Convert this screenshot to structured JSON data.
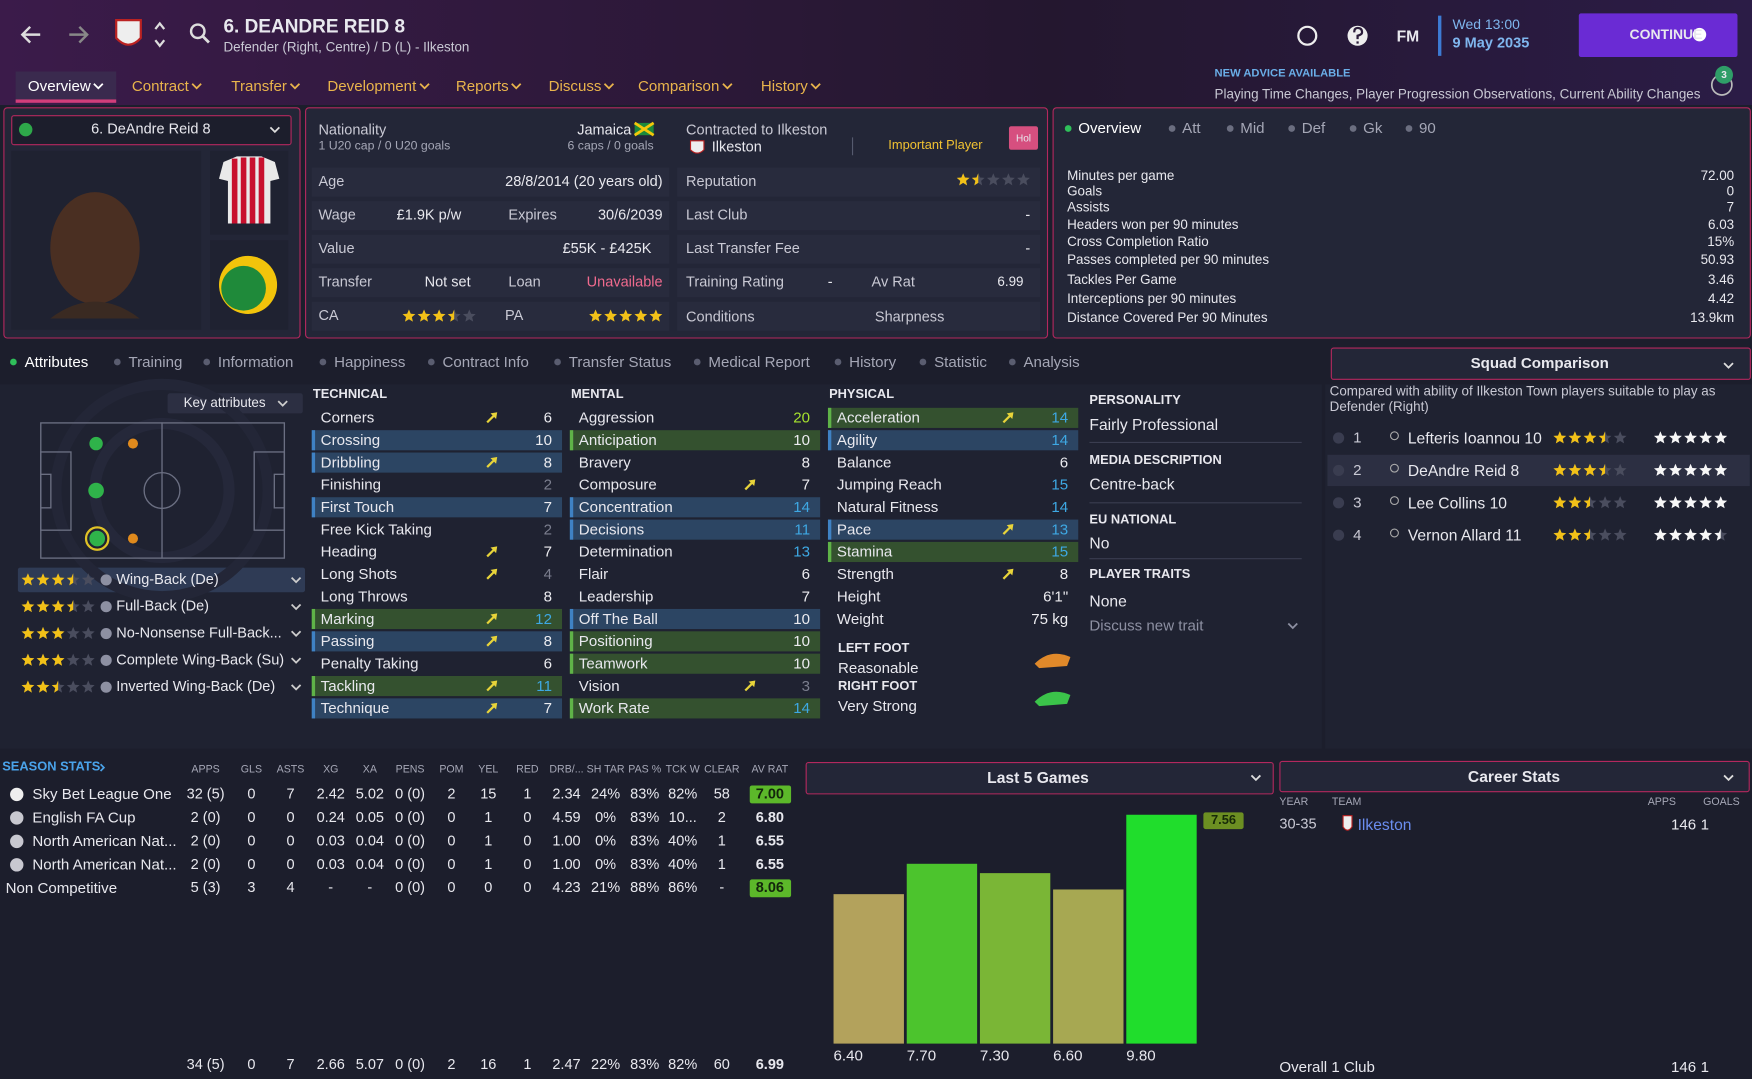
{
  "header": {
    "title": "6. DEANDRE REID 8",
    "subtitle": "Defender (Right, Centre) / D (L) - Ilkeston",
    "logo": "FM",
    "day_time": "Wed 13:00",
    "date": "9 May 2035",
    "continue": "CONTINUE",
    "advice_title": "NEW ADVICE AVAILABLE",
    "advice_text": "Playing Time Changes, Player Progression Observations, Current Ability Changes",
    "notifications": "3"
  },
  "nav": {
    "items": [
      "Overview",
      "Contract",
      "Transfer",
      "Development",
      "Reports",
      "Discuss",
      "Comparison",
      "History"
    ]
  },
  "player_select": "6. DeAndre Reid 8",
  "profile": {
    "nationality": {
      "label": "Nationality",
      "value": "Jamaica",
      "youth": "1 U20 cap / 0 U20 goals",
      "caps": "6 caps / 0 goals"
    },
    "contract": {
      "label": "Contracted to Ilkeston",
      "club": "Ilkeston",
      "status": "Important Player",
      "badge": "Hol"
    },
    "age": {
      "label": "Age",
      "value": "28/8/2014 (20 years old)"
    },
    "wage": {
      "label": "Wage",
      "value": "£1.9K p/w"
    },
    "expires": {
      "label": "Expires",
      "value": "30/6/2039"
    },
    "value": {
      "label": "Value",
      "value": "£55K - £425K"
    },
    "transfer": {
      "label": "Transfer",
      "value": "Not set"
    },
    "loan": {
      "label": "Loan",
      "value": "Unavailable"
    },
    "ca": {
      "label": "CA",
      "stars": 3.5
    },
    "pa": {
      "label": "PA",
      "stars": 5
    },
    "reputation": {
      "label": "Reputation",
      "stars": 1.5
    },
    "last_club": {
      "label": "Last Club",
      "value": "-"
    },
    "last_fee": {
      "label": "Last Transfer Fee",
      "value": "-"
    },
    "training": {
      "label": "Training Rating",
      "value": "-"
    },
    "av_rat": {
      "label": "Av Rat",
      "value": "6.99"
    },
    "conditions": {
      "label": "Conditions"
    },
    "sharpness": {
      "label": "Sharpness"
    }
  },
  "overview": {
    "tabs": [
      "Overview",
      "Att",
      "Mid",
      "Def",
      "Gk",
      "90"
    ],
    "stats": [
      {
        "label": "Minutes per game",
        "value": "72.00"
      },
      {
        "label": "Goals",
        "value": "0"
      },
      {
        "label": "Assists",
        "value": "7"
      },
      {
        "label": "Headers won per 90 minutes",
        "value": "6.03"
      },
      {
        "label": "Cross Completion Ratio",
        "value": "15%"
      },
      {
        "label": "Passes completed per 90 minutes",
        "value": "50.93"
      },
      {
        "label": "Tackles Per Game",
        "value": "3.46"
      },
      {
        "label": "Interceptions per 90 minutes",
        "value": "4.42"
      },
      {
        "label": "Distance Covered Per 90 Minutes",
        "value": "13.9km"
      }
    ]
  },
  "subtabs": [
    "Attributes",
    "Training",
    "Information",
    "Happiness",
    "Contract Info",
    "Transfer Status",
    "Medical Report",
    "History",
    "Statistic",
    "Analysis"
  ],
  "key_attributes": "Key attributes",
  "roles": [
    {
      "name": "Wing-Back (De)",
      "stars": 3.5
    },
    {
      "name": "Full-Back (De)",
      "stars": 3.5
    },
    {
      "name": "No-Nonsense Full-Back...",
      "stars": 3
    },
    {
      "name": "Complete Wing-Back (Su)",
      "stars": 3
    },
    {
      "name": "Inverted Wing-Back (De)",
      "stars": 2.5
    }
  ],
  "attributes": {
    "technical": {
      "title": "TECHNICAL",
      "items": [
        {
          "name": "Corners",
          "value": 6,
          "trend": "up"
        },
        {
          "name": "Crossing",
          "value": 10,
          "highlight": "blue"
        },
        {
          "name": "Dribbling",
          "value": 8,
          "highlight": "blue",
          "trend": "up"
        },
        {
          "name": "Finishing",
          "value": 2
        },
        {
          "name": "First Touch",
          "value": 7,
          "highlight": "blue"
        },
        {
          "name": "Free Kick Taking",
          "value": 2
        },
        {
          "name": "Heading",
          "value": 7,
          "trend": "up"
        },
        {
          "name": "Long Shots",
          "value": 4,
          "trend": "up"
        },
        {
          "name": "Long Throws",
          "value": 8
        },
        {
          "name": "Marking",
          "value": 12,
          "highlight": "green",
          "trend": "up"
        },
        {
          "name": "Passing",
          "value": 8,
          "highlight": "blue",
          "trend": "up"
        },
        {
          "name": "Penalty Taking",
          "value": 6
        },
        {
          "name": "Tackling",
          "value": 11,
          "highlight": "green",
          "trend": "up"
        },
        {
          "name": "Technique",
          "value": 7,
          "highlight": "blue",
          "trend": "up"
        }
      ]
    },
    "mental": {
      "title": "MENTAL",
      "items": [
        {
          "name": "Aggression",
          "value": 20
        },
        {
          "name": "Anticipation",
          "value": 10,
          "highlight": "green"
        },
        {
          "name": "Bravery",
          "value": 8
        },
        {
          "name": "Composure",
          "value": 7,
          "trend": "up"
        },
        {
          "name": "Concentration",
          "value": 14,
          "highlight": "blue"
        },
        {
          "name": "Decisions",
          "value": 11,
          "highlight": "blue"
        },
        {
          "name": "Determination",
          "value": 13
        },
        {
          "name": "Flair",
          "value": 6
        },
        {
          "name": "Leadership",
          "value": 7
        },
        {
          "name": "Off The Ball",
          "value": 10,
          "highlight": "blue"
        },
        {
          "name": "Positioning",
          "value": 10,
          "highlight": "green"
        },
        {
          "name": "Teamwork",
          "value": 10,
          "highlight": "green"
        },
        {
          "name": "Vision",
          "value": 3,
          "trend": "up"
        },
        {
          "name": "Work Rate",
          "value": 14,
          "highlight": "green"
        }
      ]
    },
    "physical": {
      "title": "PHYSICAL",
      "items": [
        {
          "name": "Acceleration",
          "value": 14,
          "highlight": "green",
          "trend": "up"
        },
        {
          "name": "Agility",
          "value": 14,
          "highlight": "blue"
        },
        {
          "name": "Balance",
          "value": 6
        },
        {
          "name": "Jumping Reach",
          "value": 15
        },
        {
          "name": "Natural Fitness",
          "value": 14
        },
        {
          "name": "Pace",
          "value": 13,
          "highlight": "blue",
          "trend": "up"
        },
        {
          "name": "Stamina",
          "value": 15,
          "highlight": "green"
        },
        {
          "name": "Strength",
          "value": 8,
          "trend": "up"
        },
        {
          "name": "Height",
          "value": "6'1\""
        },
        {
          "name": "Weight",
          "value": "75 kg"
        }
      ]
    }
  },
  "feet": {
    "left_label": "LEFT FOOT",
    "left": "Reasonable",
    "right_label": "RIGHT FOOT",
    "right": "Very Strong"
  },
  "profile_info": [
    {
      "label": "PERSONALITY",
      "value": "Fairly Professional"
    },
    {
      "label": "MEDIA DESCRIPTION",
      "value": "Centre-back"
    },
    {
      "label": "EU NATIONAL",
      "value": "No"
    },
    {
      "label": "PLAYER TRAITS",
      "value": "None"
    }
  ],
  "discuss_trait": "Discuss new trait",
  "squad_comparison": {
    "title": "Squad Comparison",
    "note": "Compared with ability of Ilkeston Town players suitable to play as Defender (Right)",
    "players": [
      {
        "rank": 1,
        "name": "Lefteris Ioannou 10",
        "ca": 3.5,
        "pa": 5
      },
      {
        "rank": 2,
        "name": "DeAndre Reid 8",
        "ca": 3.5,
        "pa": 5
      },
      {
        "rank": 3,
        "name": "Lee Collins 10",
        "ca": 2.5,
        "pa": 5
      },
      {
        "rank": 4,
        "name": "Vernon Allard 11",
        "ca": 2.5,
        "pa": 4.5
      }
    ]
  },
  "season_stats": {
    "title": "SEASON STATS",
    "columns": [
      "APPS",
      "GLS",
      "ASTS",
      "XG",
      "XA",
      "PENS",
      "POM",
      "YEL",
      "RED",
      "DRB/...",
      "SH TAR",
      "PAS %",
      "TCK W",
      "CLEAR",
      "AV RAT"
    ],
    "rows": [
      {
        "competition": "Sky Bet League One",
        "values": [
          "32 (5)",
          "0",
          "7",
          "2.42",
          "5.02",
          "0 (0)",
          "2",
          "15",
          "1",
          "2.34",
          "24%",
          "83%",
          "82%",
          "58",
          "7.00"
        ],
        "highlight": true
      },
      {
        "competition": "English FA Cup",
        "values": [
          "2 (0)",
          "0",
          "0",
          "0.24",
          "0.05",
          "0 (0)",
          "0",
          "1",
          "0",
          "4.59",
          "0%",
          "83%",
          "10...",
          "2",
          "6.80"
        ]
      },
      {
        "competition": "North American Nat...",
        "values": [
          "2 (0)",
          "0",
          "0",
          "0.03",
          "0.04",
          "0 (0)",
          "0",
          "1",
          "0",
          "1.00",
          "0%",
          "83%",
          "40%",
          "1",
          "6.55"
        ]
      },
      {
        "competition": "North American Nat...",
        "values": [
          "2 (0)",
          "0",
          "0",
          "0.03",
          "0.04",
          "0 (0)",
          "0",
          "1",
          "0",
          "1.00",
          "0%",
          "83%",
          "40%",
          "1",
          "6.55"
        ]
      },
      {
        "competition": "Non Competitive",
        "values": [
          "5 (3)",
          "3",
          "4",
          "-",
          "-",
          "0 (0)",
          "0",
          "0",
          "0",
          "4.23",
          "21%",
          "88%",
          "86%",
          "-",
          "8.06"
        ],
        "highlight": true
      }
    ],
    "total": [
      "34 (5)",
      "0",
      "7",
      "2.66",
      "5.07",
      "0 (0)",
      "2",
      "16",
      "1",
      "2.47",
      "22%",
      "83%",
      "82%",
      "60",
      "6.99"
    ]
  },
  "last5": {
    "title": "Last 5 Games",
    "values": [
      6.4,
      7.7,
      7.3,
      6.6,
      9.8
    ],
    "value_labels": [
      "6.40",
      "7.70",
      "7.30",
      "6.60",
      "9.80"
    ],
    "colors": [
      "#b3a25c",
      "#4cc42d",
      "#7ab636",
      "#a7a852",
      "#20dd2c"
    ],
    "ylim": [
      0,
      10
    ],
    "average_label": "7.56"
  },
  "career": {
    "title": "Career Stats",
    "columns": [
      "YEAR",
      "TEAM",
      "APPS",
      "GOALS"
    ],
    "rows": [
      {
        "year": "30-35",
        "team": "Ilkeston",
        "apps": "146",
        "goals": "1"
      }
    ],
    "total": {
      "label": "Overall 1 Club",
      "apps": "146",
      "goals": "1"
    }
  }
}
